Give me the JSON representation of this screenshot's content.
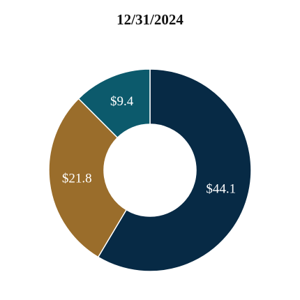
{
  "chart_data": {
    "type": "donut",
    "title": "12/31/2024",
    "values": [
      44.1,
      21.8,
      9.4
    ],
    "value_labels": [
      "$44.1",
      "$21.8",
      "$9.4"
    ],
    "colors": [
      "#072a45",
      "#9a6d2b",
      "#0c5a6c"
    ]
  }
}
